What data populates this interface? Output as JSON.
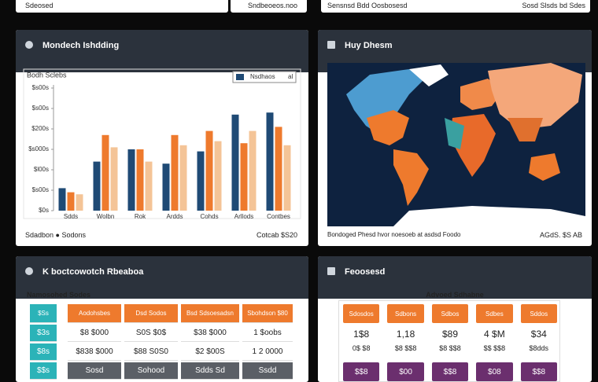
{
  "top_cards": [
    "Sdeosed",
    "Sndbeoeos.noo",
    "Sensnsd Bdd Oosbosesd",
    "Sosd Slsds bd Sdes"
  ],
  "sales_panel": {
    "title": "Mondech Ishdding",
    "chart": {
      "type": "bar",
      "title": "Bodh Sclebs",
      "legend_note": "al",
      "categories": [
        "Sdds",
        "Wolbn",
        "Rok",
        "Ardds",
        "Cohds",
        "Arllods",
        "Contbes"
      ],
      "series": [
        {
          "name": "Nsdhaos",
          "color": "#1f4a75",
          "values": [
            11,
            24,
            30,
            23,
            29,
            47,
            48
          ]
        },
        {
          "color": "#ee7a2d",
          "values": [
            9,
            37,
            30,
            37,
            39,
            33,
            41
          ]
        },
        {
          "color": "#f4c497",
          "values": [
            8,
            31,
            24,
            32,
            34,
            39,
            32
          ]
        }
      ],
      "ylim": [
        0,
        60
      ],
      "yticks": [
        {
          "value": 0,
          "label": "$0s"
        },
        {
          "value": 10,
          "label": "$s00s"
        },
        {
          "value": 20,
          "label": "$l00s"
        },
        {
          "value": 30,
          "label": "$s000s"
        },
        {
          "value": 40,
          "label": "$200s"
        },
        {
          "value": 50,
          "label": "$s00s"
        },
        {
          "value": 60,
          "label": "$s00s"
        }
      ]
    },
    "footer_left": "Sdadbon ● Sodons",
    "footer_right": "Cotcab $S20"
  },
  "map_panel": {
    "title": "Huy Dhesm",
    "footer_left": "Bondoged Phesd hvor noesoeb at asdsd Foodo",
    "footer_right": "AGdS. $S AB"
  },
  "table_panel": {
    "title": "K boctcowotch Rbeaboa",
    "subtitle": "Namosohed Sodes",
    "table": {
      "header": [
        "$Ss",
        "Aodohsbes",
        "Dsd Sodos",
        "Bsd Sdsoesadsn",
        "Sbohdson $80"
      ],
      "rows": [
        [
          "$3s",
          "$8 $000",
          "S0S $0$",
          "$38 $000",
          "1 $oobs"
        ],
        [
          "$8s",
          "$838 $000",
          "$88 S0S0",
          "$2 $00S",
          "1 2 0000"
        ],
        [
          "$$s",
          "Sosd",
          "Sohood",
          "Sdds Sd",
          "Ssdd"
        ]
      ]
    }
  },
  "stats_panel": {
    "title": "Feoosesd",
    "subtitle": "Advoed Sdhabne",
    "columns": [
      {
        "head": "Sdosdos",
        "values": [
          "1$8",
          "0$ $8"
        ],
        "foot": "$$8"
      },
      {
        "head": "Sdbons",
        "values": [
          "1,18",
          "$8 $$8"
        ],
        "foot": "$00"
      },
      {
        "head": "Sdbos",
        "values": [
          "$89",
          "$8 $$8"
        ],
        "foot": "$$8"
      },
      {
        "head": "Sdbes",
        "values": [
          "4 $M",
          "$$ $$8"
        ],
        "foot": "$08"
      },
      {
        "head": "Sddos",
        "values": [
          "$34",
          "$8dds"
        ],
        "foot": "$$8"
      }
    ]
  }
}
